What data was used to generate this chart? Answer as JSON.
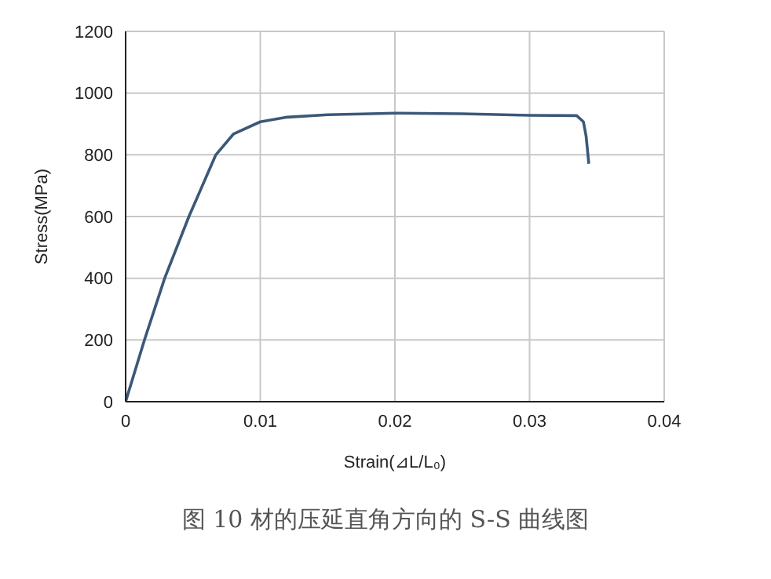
{
  "chart_data": {
    "type": "line",
    "xlabel": "Strain(⊿L/L₀)",
    "ylabel": "Stress(MPa)",
    "annotations": [
      "图 10 材的压延直角方向的 S-S 曲线图"
    ],
    "x": [
      0,
      0.0014,
      0.0029,
      0.0047,
      0.0067,
      0.008,
      0.01,
      0.012,
      0.015,
      0.02,
      0.025,
      0.03,
      0.0335,
      0.034,
      0.0342,
      0.0344
    ],
    "series": [
      {
        "color": "#3b5878",
        "values": [
          0,
          200,
          400,
          600,
          800,
          867,
          907,
          922,
          930,
          935,
          933,
          928,
          927,
          907,
          860,
          771
        ]
      }
    ],
    "xlim": [
      0,
      0.04
    ],
    "xticks": [
      0,
      0.01,
      0.02,
      0.03,
      0.04
    ],
    "ylim": [
      0,
      1200
    ],
    "yticks": [
      0,
      200,
      400,
      600,
      800,
      1000,
      1200
    ],
    "grid": true,
    "marker": "none",
    "line_style": "solid"
  }
}
